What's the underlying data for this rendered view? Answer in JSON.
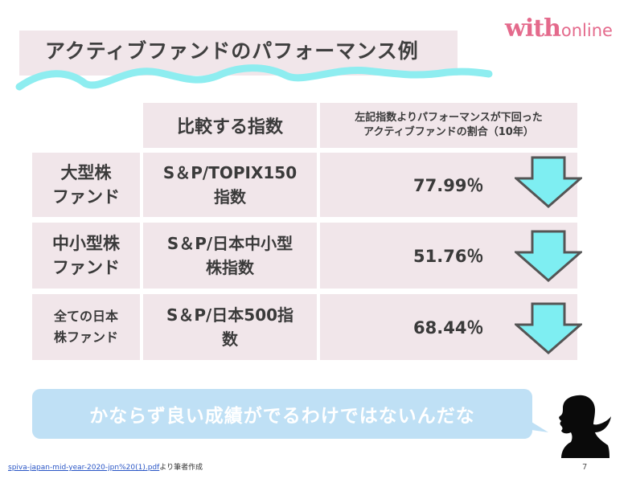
{
  "logo": {
    "with": "with",
    "online": "online",
    "color": "#e46a8c"
  },
  "title": "アクティブファンドのパフォーマンス例",
  "table": {
    "header_index": "比較する指数",
    "header_ratio": "左記指数よりパフォーマンスが下回った\nアクティブファンドの割合（10年）",
    "rows": [
      {
        "fund": "大型株\nファンド",
        "index": "S＆P/TOPIX150\n指数",
        "value": "77.99％",
        "trend_icon": "down-arrow-icon"
      },
      {
        "fund": "中小型株\nファンド",
        "index": "S＆P/日本中小型\n株指数",
        "value": "51.76％",
        "trend_icon": "down-arrow-icon"
      },
      {
        "fund": "全ての日本\n株ファンド",
        "index": "S＆P/日本500指\n数",
        "value": "68.44％",
        "trend_icon": "down-arrow-icon"
      }
    ]
  },
  "comment": "かならず良い成績がでるわけではないんだな",
  "source": {
    "link": "spiva-japan-mid-year-2020-jpn%20(1).pdf",
    "suffix": "より筆者作成"
  },
  "page_number": "7",
  "colors": {
    "cell_bg": "#f1e6ea",
    "arrow_fill": "#7eeef2",
    "arrow_stroke": "#555555",
    "bubble": "#bfe0f5",
    "squiggle": "#8eedf0"
  }
}
